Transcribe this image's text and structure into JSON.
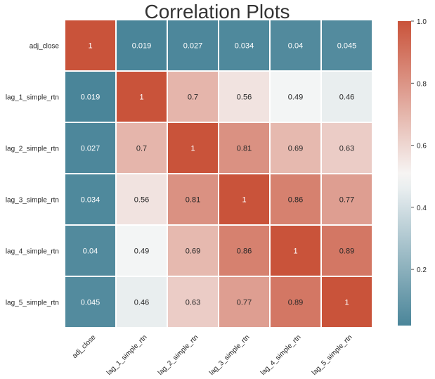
{
  "chart_data": {
    "type": "heatmap",
    "title": "Correlation Plots",
    "xlabel": "",
    "ylabel": "",
    "row_labels": [
      "adj_close",
      "lag_1_simple_rtn",
      "lag_2_simple_rtn",
      "lag_3_simple_rtn",
      "lag_4_simple_rtn",
      "lag_5_simple_rtn"
    ],
    "col_labels": [
      "adj_close",
      "lag_1_simple_rtn",
      "lag_2_simple_rtn",
      "lag_3_simple_rtn",
      "lag_4_simple_rtn",
      "lag_5_simple_rtn"
    ],
    "values": [
      [
        1,
        0.019,
        0.027,
        0.034,
        0.04,
        0.045
      ],
      [
        0.019,
        1,
        0.7,
        0.56,
        0.49,
        0.46
      ],
      [
        0.027,
        0.7,
        1,
        0.81,
        0.69,
        0.63
      ],
      [
        0.034,
        0.56,
        0.81,
        1,
        0.86,
        0.77
      ],
      [
        0.04,
        0.49,
        0.69,
        0.86,
        1,
        0.89
      ],
      [
        0.045,
        0.46,
        0.63,
        0.77,
        0.89,
        1
      ]
    ],
    "cell_text": [
      [
        "1",
        "0.019",
        "0.027",
        "0.034",
        "0.04",
        "0.045"
      ],
      [
        "0.019",
        "1",
        "0.7",
        "0.56",
        "0.49",
        "0.46"
      ],
      [
        "0.027",
        "0.7",
        "1",
        "0.81",
        "0.69",
        "0.63"
      ],
      [
        "0.034",
        "0.56",
        "0.81",
        "1",
        "0.86",
        "0.77"
      ],
      [
        "0.04",
        "0.49",
        "0.69",
        "0.86",
        "1",
        "0.89"
      ],
      [
        "0.045",
        "0.46",
        "0.63",
        "0.77",
        "0.89",
        "1"
      ]
    ],
    "colorbar": {
      "range": [
        0.019,
        1.0
      ],
      "ticks": [
        0.2,
        0.4,
        0.6,
        0.8,
        1.0
      ],
      "tick_labels": [
        "0.2",
        "0.4",
        "0.6",
        "0.8",
        "1.0"
      ]
    },
    "colormap": {
      "low": "#4a8599",
      "mid": "#f7f7f7",
      "high": "#c9533a",
      "mid_value": 0.5
    },
    "grid": false,
    "legend": "right colorbar"
  }
}
